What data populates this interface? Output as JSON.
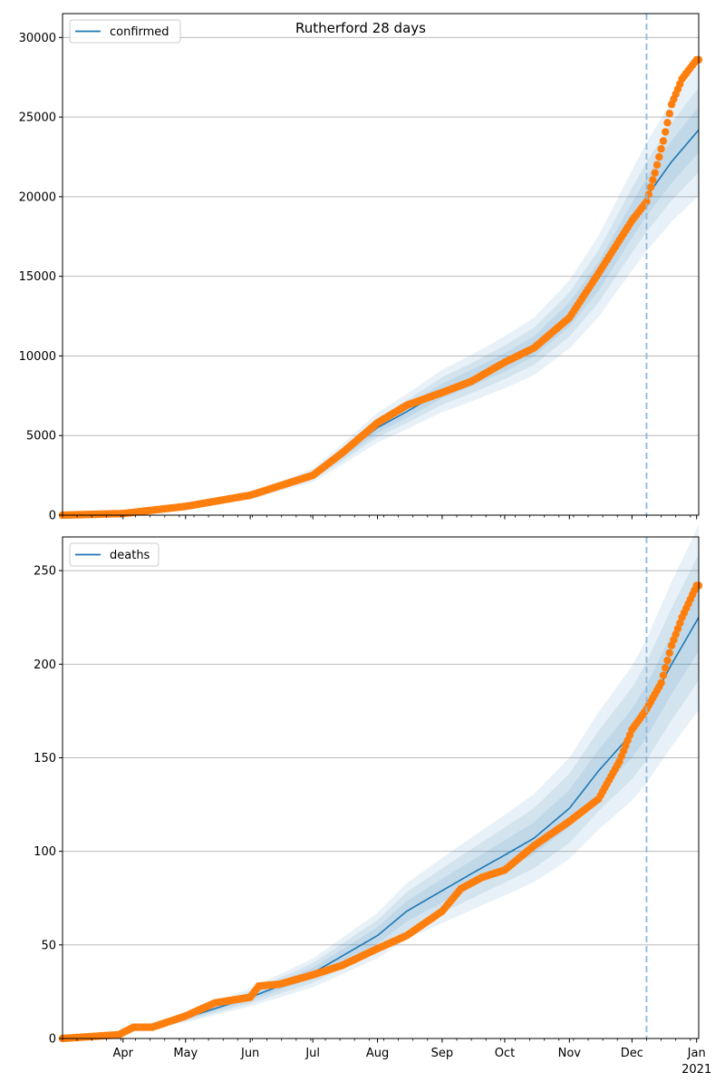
{
  "title": "Rutherford 28 days",
  "colors": {
    "model_line": "#1f77b4",
    "band": "#1f77b4",
    "observed": "#ff7f0e",
    "forecast_line": "#8fb8dc",
    "grid": "#b0b0b0"
  },
  "x_axis": {
    "month_labels": [
      "Apr",
      "May",
      "Jun",
      "Jul",
      "Aug",
      "Sep",
      "Oct",
      "Nov",
      "Dec",
      "Jan"
    ],
    "year_label": "2021",
    "start_date": "2020-03-03",
    "end_date": "2021-01-02"
  },
  "chart_data": [
    {
      "type": "line",
      "legend": "confirmed",
      "legend_position": "top-left",
      "grid": "horizontal",
      "ylim": [
        0,
        31500
      ],
      "yticks": [
        0,
        5000,
        10000,
        15000,
        20000,
        25000,
        30000
      ],
      "forecast_start": "2020-12-08",
      "model": {
        "x": [
          "2020-03-03",
          "2020-04-01",
          "2020-05-01",
          "2020-06-01",
          "2020-07-01",
          "2020-07-15",
          "2020-08-01",
          "2020-08-15",
          "2020-09-01",
          "2020-09-15",
          "2020-10-01",
          "2020-10-15",
          "2020-11-01",
          "2020-11-15",
          "2020-12-01",
          "2020-12-08",
          "2020-12-20",
          "2021-01-02"
        ],
        "y": [
          0,
          100,
          500,
          1200,
          2500,
          3800,
          5500,
          6500,
          7800,
          8600,
          9600,
          10600,
          12600,
          15000,
          18500,
          20000,
          22200,
          24200
        ],
        "band_halfwidths_frac": [
          0.06,
          0.11,
          0.17
        ]
      },
      "observed": {
        "x": [
          "2020-03-03",
          "2020-04-01",
          "2020-05-01",
          "2020-06-01",
          "2020-07-01",
          "2020-07-15",
          "2020-08-01",
          "2020-08-15",
          "2020-09-01",
          "2020-09-15",
          "2020-10-01",
          "2020-10-15",
          "2020-11-01",
          "2020-11-15",
          "2020-12-01",
          "2020-12-08",
          "2020-12-12",
          "2020-12-16",
          "2020-12-20",
          "2020-12-25",
          "2021-01-01"
        ],
        "y": [
          0,
          100,
          550,
          1250,
          2500,
          3900,
          5800,
          6900,
          7700,
          8400,
          9600,
          10500,
          12400,
          15200,
          18500,
          19700,
          21500,
          23500,
          25800,
          27400,
          28600
        ]
      }
    },
    {
      "type": "line",
      "legend": "deaths",
      "legend_position": "top-left",
      "grid": "horizontal",
      "ylim": [
        0,
        268
      ],
      "yticks": [
        0,
        50,
        100,
        150,
        200,
        250
      ],
      "forecast_start": "2020-12-08",
      "model": {
        "x": [
          "2020-03-03",
          "2020-03-25",
          "2020-04-15",
          "2020-05-01",
          "2020-06-01",
          "2020-07-01",
          "2020-07-15",
          "2020-08-01",
          "2020-08-15",
          "2020-09-01",
          "2020-09-15",
          "2020-10-01",
          "2020-10-15",
          "2020-11-01",
          "2020-11-15",
          "2020-12-01",
          "2020-12-08",
          "2020-12-20",
          "2021-01-02"
        ],
        "y": [
          0,
          1,
          7,
          11,
          22,
          35,
          44,
          55,
          68,
          79,
          88,
          98,
          107,
          123,
          143,
          163,
          175,
          200,
          225
        ],
        "band_halfwidths_frac": [
          0.08,
          0.15,
          0.22
        ]
      },
      "observed": {
        "x": [
          "2020-03-03",
          "2020-03-30",
          "2020-04-06",
          "2020-04-15",
          "2020-05-01",
          "2020-05-15",
          "2020-06-01",
          "2020-06-05",
          "2020-06-15",
          "2020-07-01",
          "2020-07-15",
          "2020-08-01",
          "2020-08-15",
          "2020-09-01",
          "2020-09-10",
          "2020-09-20",
          "2020-10-01",
          "2020-10-15",
          "2020-11-01",
          "2020-11-15",
          "2020-11-25",
          "2020-12-01",
          "2020-12-08",
          "2020-12-15",
          "2020-12-20",
          "2020-12-25",
          "2021-01-01"
        ],
        "y": [
          0,
          2,
          6,
          6,
          12,
          19,
          22,
          28,
          29,
          34,
          39,
          48,
          55,
          68,
          80,
          86,
          90,
          103,
          116,
          128,
          148,
          165,
          176,
          190,
          210,
          225,
          242
        ]
      }
    }
  ]
}
